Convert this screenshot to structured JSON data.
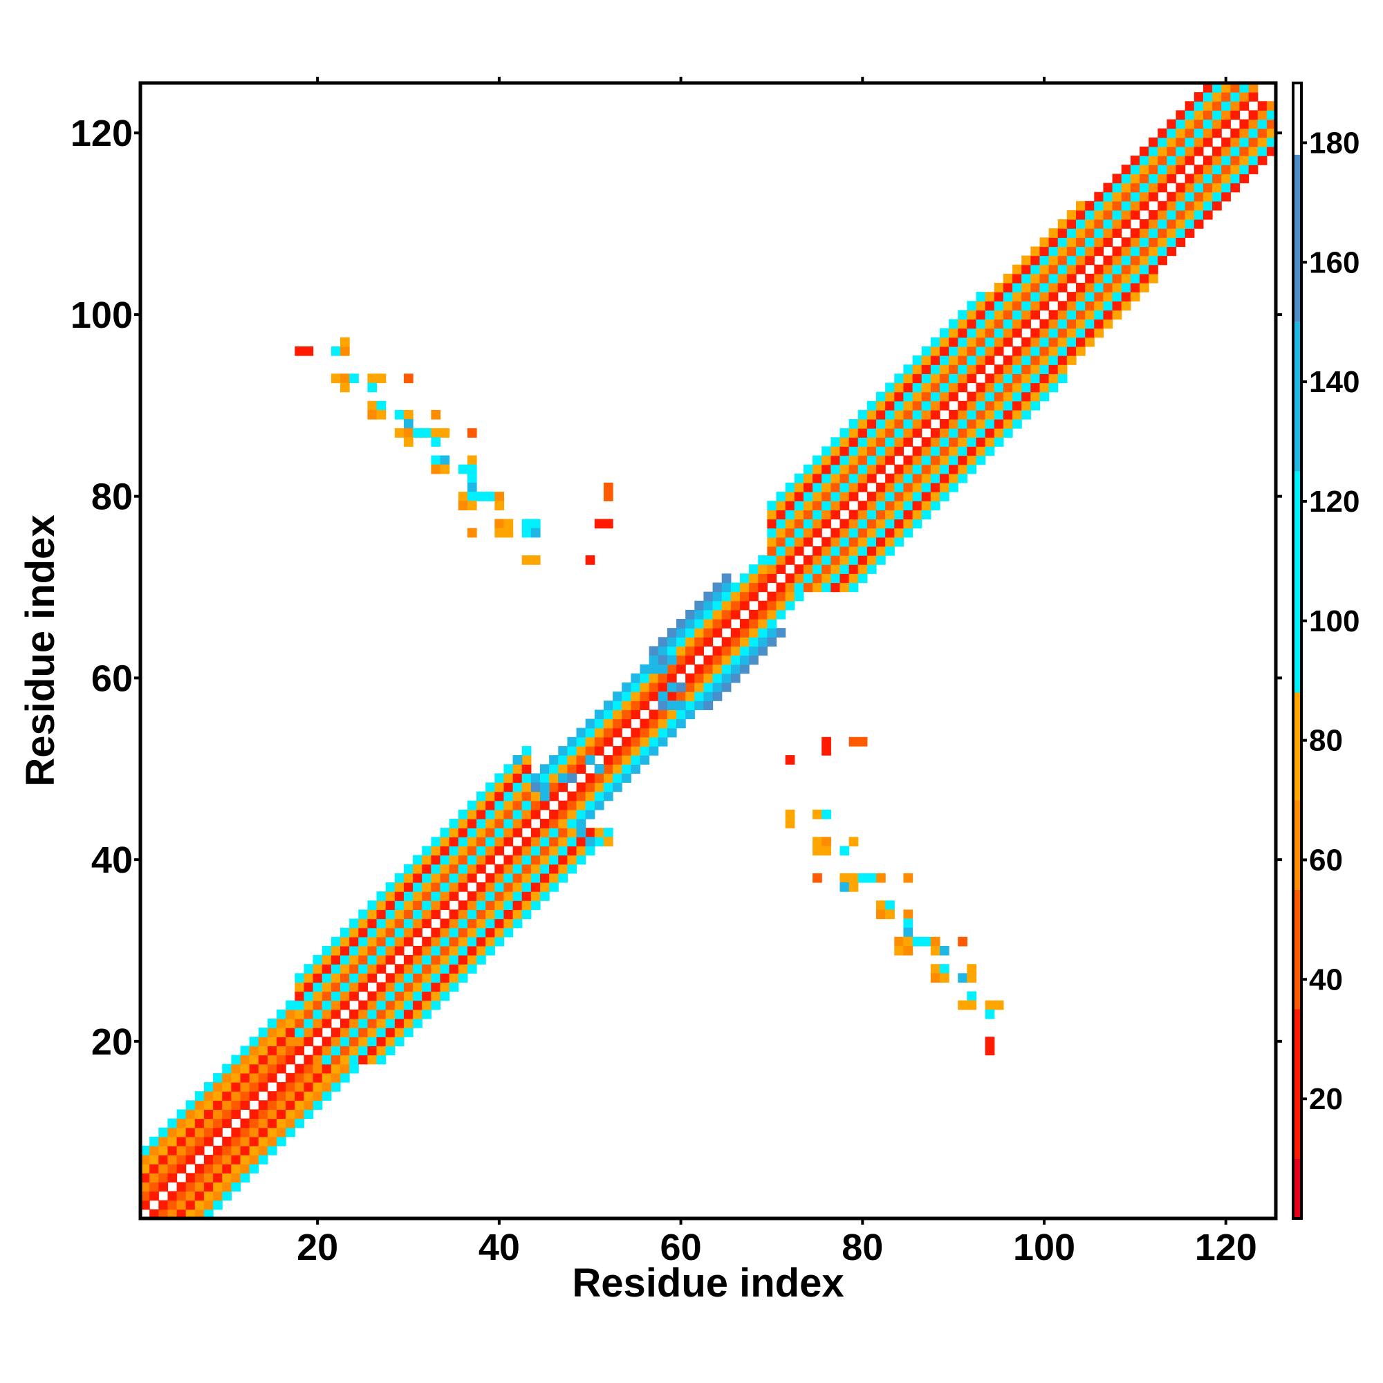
{
  "chart_data": {
    "type": "heatmap",
    "title": "",
    "xlabel": "Residue index",
    "ylabel": "Residue index",
    "xlim": [
      1,
      125
    ],
    "ylim": [
      1,
      125
    ],
    "xticks": [
      20,
      40,
      60,
      80,
      100,
      120
    ],
    "yticks": [
      20,
      40,
      60,
      80,
      100,
      120
    ],
    "colorbar": {
      "range": [
        0,
        190
      ],
      "ticks": [
        20,
        40,
        60,
        80,
        100,
        120,
        140,
        160,
        180
      ],
      "bands": [
        {
          "from": 0,
          "to": 10,
          "color": "#e8001a"
        },
        {
          "from": 10,
          "to": 35,
          "color": "#ff1a00"
        },
        {
          "from": 35,
          "to": 55,
          "color": "#ff5a00"
        },
        {
          "from": 55,
          "to": 70,
          "color": "#ff8c00"
        },
        {
          "from": 70,
          "to": 88,
          "color": "#ffa500"
        },
        {
          "from": 88,
          "to": 125,
          "color": "#00f0ff"
        },
        {
          "from": 125,
          "to": 150,
          "color": "#1fb8e6"
        },
        {
          "from": 150,
          "to": 178,
          "color": "#4a8fca"
        },
        {
          "from": 178,
          "to": 190,
          "color": "#ffffff"
        }
      ]
    },
    "diagonal_bands": [
      {
        "from": 1,
        "to": 18,
        "offsets": [
          [
            1,
            15
          ],
          [
            2,
            45
          ],
          [
            3,
            65
          ],
          [
            4,
            30
          ],
          [
            5,
            75
          ],
          [
            6,
            55
          ],
          [
            7,
            100
          ]
        ]
      },
      {
        "from": 18,
        "to": 44,
        "offsets": [
          [
            1,
            15
          ],
          [
            2,
            60
          ],
          [
            3,
            110
          ],
          [
            4,
            35
          ],
          [
            5,
            75
          ],
          [
            6,
            105
          ],
          [
            7,
            20
          ],
          [
            8,
            70
          ],
          [
            9,
            100
          ]
        ]
      },
      {
        "from": 44,
        "to": 52,
        "offsets": [
          [
            1,
            15
          ],
          [
            2,
            45
          ],
          [
            3,
            75
          ],
          [
            4,
            100
          ],
          [
            5,
            130
          ]
        ]
      },
      {
        "from": 52,
        "to": 57,
        "offsets": [
          [
            1,
            15
          ],
          [
            2,
            45
          ],
          [
            3,
            75
          ],
          [
            4,
            110
          ],
          [
            5,
            125
          ]
        ]
      },
      {
        "from": 57,
        "to": 66,
        "offsets": [
          [
            1,
            15
          ],
          [
            2,
            40
          ],
          [
            3,
            70
          ],
          [
            4,
            100
          ],
          [
            5,
            145
          ],
          [
            6,
            150
          ]
        ]
      },
      {
        "from": 66,
        "to": 70,
        "offsets": [
          [
            1,
            15
          ],
          [
            2,
            45
          ],
          [
            3,
            75
          ],
          [
            4,
            100
          ]
        ]
      },
      {
        "from": 70,
        "to": 94,
        "offsets": [
          [
            1,
            15
          ],
          [
            2,
            60
          ],
          [
            3,
            110
          ],
          [
            4,
            35
          ],
          [
            5,
            75
          ],
          [
            6,
            105
          ],
          [
            7,
            20
          ],
          [
            8,
            70
          ],
          [
            9,
            100
          ]
        ]
      },
      {
        "from": 94,
        "to": 105,
        "offsets": [
          [
            1,
            15
          ],
          [
            2,
            60
          ],
          [
            3,
            110
          ],
          [
            4,
            35
          ],
          [
            5,
            75
          ],
          [
            6,
            105
          ],
          [
            7,
            20
          ],
          [
            8,
            70
          ]
        ]
      },
      {
        "from": 105,
        "to": 124,
        "offsets": [
          [
            1,
            15
          ],
          [
            2,
            60
          ],
          [
            3,
            110
          ],
          [
            4,
            35
          ],
          [
            5,
            75
          ],
          [
            6,
            105
          ],
          [
            7,
            20
          ]
        ]
      }
    ],
    "off_diagonal_cells": [
      [
        18,
        96,
        15
      ],
      [
        19,
        96,
        15
      ],
      [
        22,
        96,
        110
      ],
      [
        23,
        96,
        65
      ],
      [
        23,
        97,
        75
      ],
      [
        22,
        93,
        75
      ],
      [
        23,
        93,
        65
      ],
      [
        24,
        93,
        110
      ],
      [
        26,
        93,
        75
      ],
      [
        27,
        93,
        70
      ],
      [
        30,
        93,
        50
      ],
      [
        23,
        92,
        75
      ],
      [
        26,
        92,
        110
      ],
      [
        26,
        90,
        75
      ],
      [
        27,
        90,
        105
      ],
      [
        26,
        89,
        65
      ],
      [
        27,
        89,
        75
      ],
      [
        29,
        89,
        110
      ],
      [
        30,
        89,
        75
      ],
      [
        33,
        89,
        65
      ],
      [
        30,
        88,
        130
      ],
      [
        29,
        87,
        75
      ],
      [
        30,
        87,
        65
      ],
      [
        31,
        87,
        120
      ],
      [
        32,
        87,
        120
      ],
      [
        33,
        87,
        70
      ],
      [
        34,
        87,
        75
      ],
      [
        37,
        87,
        45
      ],
      [
        30,
        86,
        75
      ],
      [
        33,
        86,
        110
      ],
      [
        33,
        84,
        110
      ],
      [
        34,
        84,
        125
      ],
      [
        37,
        84,
        75
      ],
      [
        33,
        83,
        65
      ],
      [
        34,
        83,
        75
      ],
      [
        36,
        83,
        120
      ],
      [
        37,
        83,
        110
      ],
      [
        37,
        82,
        110
      ],
      [
        37,
        81,
        125
      ],
      [
        36,
        80,
        75
      ],
      [
        37,
        80,
        110
      ],
      [
        38,
        80,
        110
      ],
      [
        39,
        80,
        110
      ],
      [
        40,
        80,
        65
      ],
      [
        36,
        79,
        65
      ],
      [
        37,
        79,
        75
      ],
      [
        40,
        79,
        75
      ],
      [
        40,
        77,
        65
      ],
      [
        41,
        77,
        75
      ],
      [
        43,
        77,
        110
      ],
      [
        44,
        77,
        120
      ],
      [
        37,
        76,
        55
      ],
      [
        40,
        76,
        70
      ],
      [
        41,
        76,
        75
      ],
      [
        43,
        76,
        110
      ],
      [
        44,
        76,
        125
      ],
      [
        43,
        73,
        75
      ],
      [
        44,
        73,
        75
      ],
      [
        50,
        73,
        20
      ],
      [
        52,
        81,
        50
      ],
      [
        52,
        80,
        50
      ],
      [
        51,
        77,
        15
      ],
      [
        52,
        77,
        15
      ],
      [
        72,
        51,
        20
      ],
      [
        76,
        52,
        15
      ],
      [
        76,
        53,
        15
      ],
      [
        79,
        53,
        50
      ],
      [
        80,
        53,
        50
      ],
      [
        72,
        44,
        75
      ],
      [
        72,
        45,
        70
      ],
      [
        75,
        45,
        75
      ],
      [
        76,
        45,
        110
      ],
      [
        75,
        42,
        75
      ],
      [
        76,
        42,
        65
      ],
      [
        75,
        41,
        75
      ],
      [
        76,
        41,
        75
      ],
      [
        78,
        41,
        110
      ],
      [
        79,
        42,
        75
      ],
      [
        75,
        38,
        50
      ],
      [
        78,
        38,
        75
      ],
      [
        79,
        38,
        70
      ],
      [
        80,
        38,
        110
      ],
      [
        81,
        38,
        120
      ],
      [
        82,
        38,
        65
      ],
      [
        85,
        38,
        55
      ],
      [
        78,
        37,
        125
      ],
      [
        79,
        37,
        75
      ],
      [
        82,
        35,
        75
      ],
      [
        83,
        35,
        110
      ],
      [
        82,
        34,
        65
      ],
      [
        83,
        34,
        75
      ],
      [
        85,
        34,
        65
      ],
      [
        85,
        33,
        120
      ],
      [
        85,
        32,
        125
      ],
      [
        84,
        31,
        65
      ],
      [
        85,
        31,
        75
      ],
      [
        86,
        31,
        110
      ],
      [
        87,
        31,
        110
      ],
      [
        88,
        31,
        65
      ],
      [
        91,
        31,
        50
      ],
      [
        84,
        30,
        75
      ],
      [
        85,
        30,
        65
      ],
      [
        88,
        30,
        75
      ],
      [
        89,
        30,
        125
      ],
      [
        88,
        28,
        75
      ],
      [
        89,
        28,
        110
      ],
      [
        92,
        28,
        75
      ],
      [
        88,
        27,
        65
      ],
      [
        89,
        27,
        75
      ],
      [
        91,
        27,
        125
      ],
      [
        92,
        27,
        75
      ],
      [
        92,
        25,
        120
      ],
      [
        91,
        24,
        75
      ],
      [
        92,
        24,
        70
      ],
      [
        94,
        24,
        75
      ],
      [
        95,
        24,
        70
      ],
      [
        94,
        23,
        120
      ],
      [
        94,
        20,
        20
      ],
      [
        94,
        19,
        20
      ],
      [
        58,
        57,
        150
      ],
      [
        59,
        57,
        140
      ],
      [
        60,
        57,
        130
      ],
      [
        58,
        58,
        130
      ],
      [
        59,
        59,
        140
      ],
      [
        60,
        59,
        150
      ],
      [
        57,
        61,
        130
      ],
      [
        58,
        61,
        140
      ],
      [
        58,
        62,
        150
      ],
      [
        59,
        62,
        130
      ],
      [
        44,
        48,
        150
      ],
      [
        45,
        48,
        140
      ],
      [
        45,
        47,
        130
      ],
      [
        47,
        49,
        130
      ],
      [
        48,
        49,
        150
      ],
      [
        51,
        50,
        140
      ],
      [
        50,
        51,
        130
      ],
      [
        42,
        51,
        130
      ],
      [
        49,
        43,
        130
      ],
      [
        50,
        42,
        125
      ],
      [
        52,
        42,
        75
      ]
    ]
  }
}
